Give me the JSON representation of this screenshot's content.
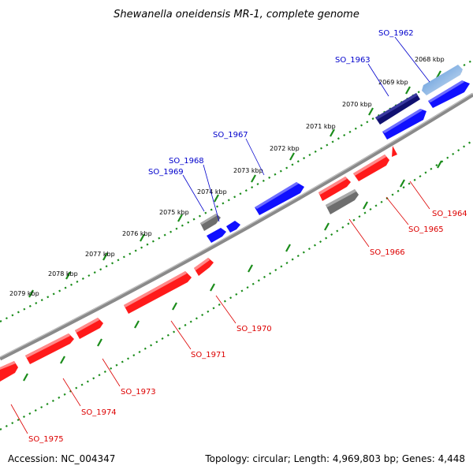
{
  "title": "Shewanella oneidensis MR-1, complete genome",
  "accession": "Accession: NC_004347",
  "topology_info": "Topology: circular; Length: 4,969,803 bp; Genes: 4,448",
  "colors": {
    "forward_gene": "#1010ff",
    "reverse_gene": "#ff1a1a",
    "forward_label": "#0000cc",
    "reverse_label": "#dd0000",
    "backbone": "#888888",
    "tick": "#1a8c1a"
  },
  "kbp_labels": [
    "2068 kbp",
    "2069 kbp",
    "2070 kbp",
    "2071 kbp",
    "2072 kbp",
    "2073 kbp",
    "2074 kbp",
    "2075 kbp",
    "2076 kbp",
    "2077 kbp",
    "2078 kbp",
    "2079 kbp"
  ],
  "forward_gene_labels": [
    "SO_1962",
    "SO_1963",
    "SO_1967",
    "SO_1968",
    "SO_1969"
  ],
  "reverse_gene_labels": [
    "SO_1964",
    "SO_1965",
    "SO_1966",
    "SO_1970",
    "SO_1971",
    "SO_1973",
    "SO_1974",
    "SO_1975"
  ]
}
